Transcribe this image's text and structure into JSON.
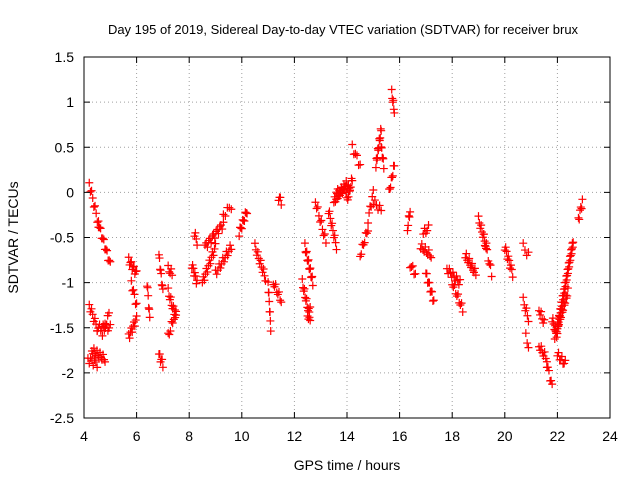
{
  "chart_data": {
    "type": "scatter",
    "title": "Day 195 of 2019, Sidereal Day-to-day VTEC variation (SDTVAR) for receiver brux",
    "xlabel": "GPS time / hours",
    "ylabel": "SDTVAR / TECUs",
    "xlim": [
      4,
      24
    ],
    "ylim": [
      -2.5,
      1.5
    ],
    "xticks": [
      4,
      6,
      8,
      10,
      12,
      14,
      16,
      18,
      20,
      22,
      24
    ],
    "yticks": [
      -2.5,
      -2,
      -1.5,
      -1,
      -0.5,
      0,
      0.5,
      1,
      1.5
    ],
    "xtick_labels": [
      "4",
      "6",
      "8",
      "10",
      "12",
      "14",
      "16",
      "18",
      "20",
      "22",
      "24"
    ],
    "ytick_labels": [
      "-2.5",
      "-2",
      "-1.5",
      "-1",
      "-0.5",
      "0",
      "0.5",
      "1",
      "1.5"
    ],
    "grid": true,
    "marker": "+",
    "color": "#ff0000",
    "legend": null,
    "segments": [
      [
        4.2,
        0.1,
        4.55,
        -0.35,
        9
      ],
      [
        4.55,
        -0.35,
        5.0,
        -0.8,
        12
      ],
      [
        4.2,
        -1.25,
        4.5,
        -1.5,
        8
      ],
      [
        4.5,
        -1.5,
        5.0,
        -1.5,
        12
      ],
      [
        4.3,
        -1.75,
        4.8,
        -1.85,
        14
      ],
      [
        4.15,
        -1.85,
        4.5,
        -1.9,
        8
      ],
      [
        4.7,
        -1.55,
        4.95,
        -1.35,
        6
      ],
      [
        5.7,
        -0.75,
        6.0,
        -0.9,
        10
      ],
      [
        5.7,
        -1.6,
        6.0,
        -1.4,
        10
      ],
      [
        5.8,
        -1.0,
        6.0,
        -1.25,
        6
      ],
      [
        6.4,
        -1.0,
        6.5,
        -1.4,
        6
      ],
      [
        6.85,
        -0.7,
        7.0,
        -1.1,
        8
      ],
      [
        6.85,
        -1.8,
        7.0,
        -1.9,
        6
      ],
      [
        7.2,
        -0.85,
        7.35,
        -0.9,
        5
      ],
      [
        7.2,
        -1.1,
        7.5,
        -1.4,
        10
      ],
      [
        7.2,
        -1.6,
        7.5,
        -1.3,
        8
      ],
      [
        8.1,
        -0.8,
        8.3,
        -1.0,
        8
      ],
      [
        8.2,
        -0.45,
        8.3,
        -0.55,
        4
      ],
      [
        8.5,
        -1.0,
        9.0,
        -0.6,
        14
      ],
      [
        8.6,
        -0.6,
        9.3,
        -0.35,
        16
      ],
      [
        9.0,
        -0.9,
        9.6,
        -0.6,
        14
      ],
      [
        9.3,
        -0.25,
        9.6,
        -0.15,
        5
      ],
      [
        9.9,
        -0.45,
        10.2,
        -0.2,
        10
      ],
      [
        10.5,
        -0.6,
        10.9,
        -0.95,
        12
      ],
      [
        11.0,
        -1.0,
        11.1,
        -1.5,
        8
      ],
      [
        11.2,
        -1.0,
        11.5,
        -1.2,
        8
      ],
      [
        11.4,
        -0.05,
        11.5,
        -0.1,
        4
      ],
      [
        12.4,
        -0.6,
        12.7,
        -1.0,
        14
      ],
      [
        12.3,
        -1.0,
        12.6,
        -1.4,
        12
      ],
      [
        12.5,
        -1.4,
        12.6,
        -1.3,
        4
      ],
      [
        12.8,
        -0.1,
        13.2,
        -0.55,
        10
      ],
      [
        13.3,
        -0.2,
        13.6,
        -0.6,
        10
      ],
      [
        13.5,
        -0.1,
        14.0,
        0.1,
        18
      ],
      [
        13.6,
        0.0,
        14.1,
        0.05,
        12
      ],
      [
        14.0,
        -0.1,
        14.2,
        0.15,
        8
      ],
      [
        14.2,
        0.5,
        14.5,
        0.3,
        6
      ],
      [
        14.5,
        -0.7,
        14.8,
        -0.4,
        8
      ],
      [
        14.8,
        -0.3,
        15.0,
        0.0,
        6
      ],
      [
        15.1,
        0.3,
        15.3,
        0.7,
        12
      ],
      [
        15.3,
        0.5,
        15.4,
        0.3,
        6
      ],
      [
        15.0,
        -0.1,
        15.3,
        -0.2,
        6
      ],
      [
        15.6,
        0.0,
        15.8,
        0.3,
        8
      ],
      [
        15.7,
        1.1,
        15.8,
        0.9,
        6
      ],
      [
        16.3,
        -0.4,
        16.4,
        -0.2,
        5
      ],
      [
        16.4,
        -0.8,
        16.6,
        -0.9,
        5
      ],
      [
        16.8,
        -0.6,
        17.2,
        -0.7,
        10
      ],
      [
        16.9,
        -0.45,
        17.1,
        -0.4,
        5
      ],
      [
        17.0,
        -0.9,
        17.3,
        -1.2,
        10
      ],
      [
        17.8,
        -0.85,
        18.3,
        -1.0,
        12
      ],
      [
        18.0,
        -1.0,
        18.4,
        -1.3,
        10
      ],
      [
        18.5,
        -0.7,
        18.9,
        -0.9,
        12
      ],
      [
        19.0,
        -0.3,
        19.3,
        -0.6,
        10
      ],
      [
        19.2,
        -0.5,
        19.5,
        -0.9,
        8
      ],
      [
        20.0,
        -0.6,
        20.3,
        -0.9,
        10
      ],
      [
        20.7,
        -0.6,
        20.9,
        -0.7,
        4
      ],
      [
        20.7,
        -1.2,
        20.9,
        -1.4,
        6
      ],
      [
        20.8,
        -1.6,
        20.9,
        -1.7,
        3
      ],
      [
        21.3,
        -1.3,
        21.5,
        -1.45,
        6
      ],
      [
        21.3,
        -1.7,
        21.6,
        -1.85,
        8
      ],
      [
        21.6,
        -1.9,
        21.8,
        -2.15,
        6
      ],
      [
        21.8,
        -1.4,
        22.0,
        -1.6,
        8
      ],
      [
        22.0,
        -1.5,
        22.6,
        -0.55,
        40
      ],
      [
        21.9,
        -1.6,
        22.4,
        -1.1,
        20
      ],
      [
        22.0,
        -1.8,
        22.3,
        -1.9,
        8
      ],
      [
        22.8,
        -0.3,
        22.95,
        -0.1,
        6
      ]
    ]
  }
}
